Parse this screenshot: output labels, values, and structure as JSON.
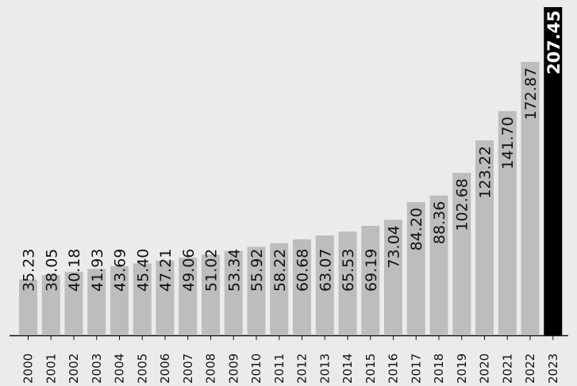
{
  "chart_data": {
    "type": "bar",
    "orientation": "vertical",
    "categories": [
      "2000",
      "2001",
      "2002",
      "2003",
      "2004",
      "2005",
      "2006",
      "2007",
      "2008",
      "2009",
      "2010",
      "2011",
      "2012",
      "2013",
      "2014",
      "2015",
      "2016",
      "2017",
      "2018",
      "2019",
      "2020",
      "2021",
      "2022",
      "2023"
    ],
    "values": [
      35.23,
      38.05,
      40.18,
      41.93,
      43.69,
      45.4,
      47.21,
      49.06,
      51.02,
      53.34,
      55.92,
      58.22,
      60.68,
      63.07,
      65.53,
      69.19,
      73.04,
      84.2,
      88.36,
      102.68,
      123.22,
      141.7,
      172.87,
      207.45
    ],
    "data_labels": [
      "35.23",
      "38.05",
      "40.18",
      "41.93",
      "43.69",
      "45.40",
      "47.21",
      "49.06",
      "51.02",
      "53.34",
      "55.92",
      "58.22",
      "60.68",
      "63.07",
      "65.53",
      "69.19",
      "73.04",
      "84.20",
      "88.36",
      "102.68",
      "123.22",
      "141.70",
      "172.87",
      "207.45"
    ],
    "highlight_index": 23,
    "ylim": [
      0,
      207.45
    ],
    "grid": false,
    "title": "",
    "xlabel": "",
    "ylabel": "",
    "colors": {
      "background": "#ebebeb",
      "bar": "#bdbdbd",
      "highlight_bar": "#000000",
      "axis": "#111111"
    }
  }
}
